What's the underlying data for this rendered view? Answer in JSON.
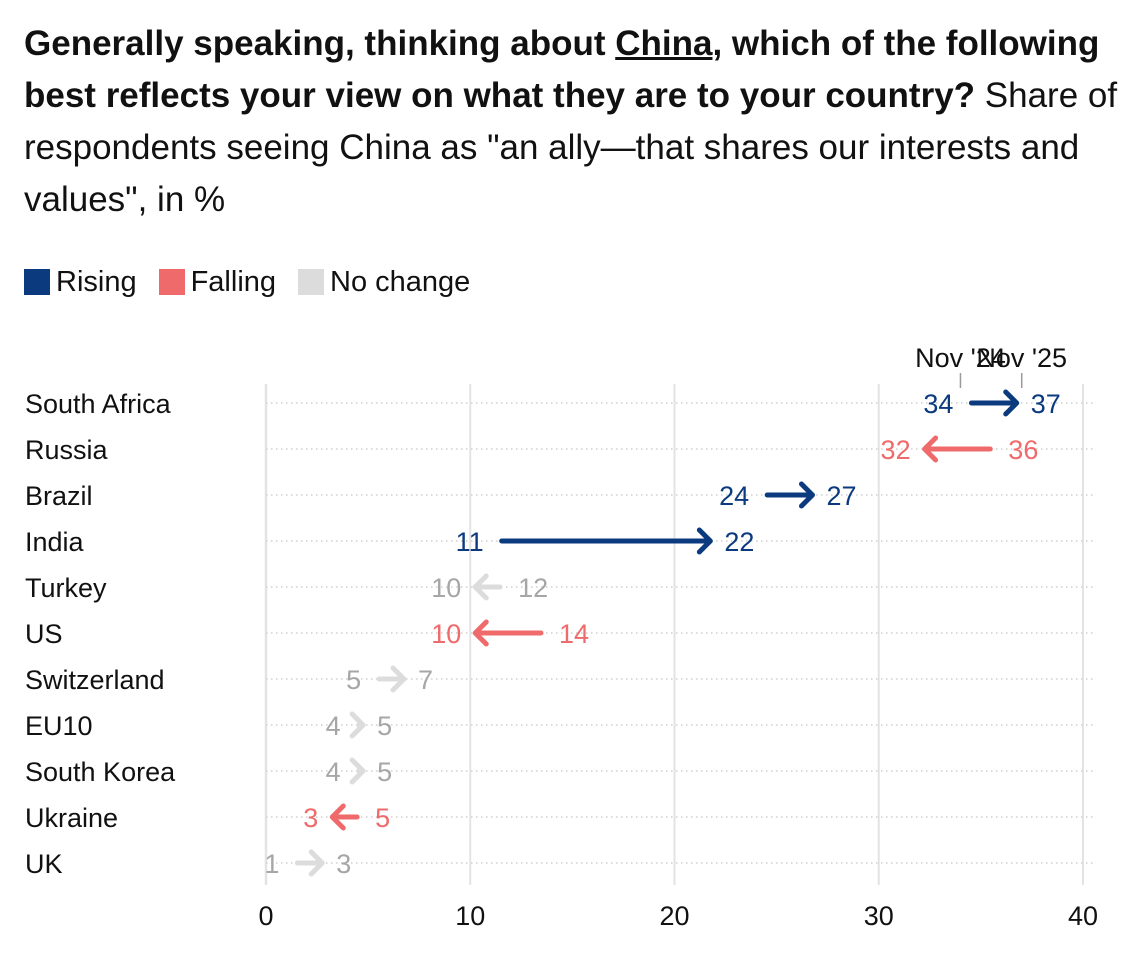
{
  "title": {
    "question_a": "Generally speaking, thinking about ",
    "question_underlined": "China",
    "question_b": ", which of the following best reflects your view on what they are to your country?",
    "subtitle": " Share of respondents seeing China as \"an ally—that shares our interests and values\", in %"
  },
  "legend": [
    {
      "label": "Rising",
      "color": "#0b3a7e"
    },
    {
      "label": "Falling",
      "color": "#ef6a6a"
    },
    {
      "label": "No change",
      "color": "#dcdcdc"
    }
  ],
  "colors": {
    "rising": "#0b3a7e",
    "falling": "#ef6a6a",
    "nochange_arrow": "#dcdcdc",
    "nochange_label": "#a6a6a6",
    "grid": "#e3e3e3",
    "dots": "#cfcfcf"
  },
  "chart_data": {
    "type": "arrow",
    "title": "Share of respondents seeing China as an ally, in %",
    "start_label": "Nov '24",
    "end_label": "Nov '25",
    "xlim": [
      0,
      40
    ],
    "xticks": [
      0,
      10,
      20,
      30,
      40
    ],
    "marker_values": {
      "start": 34,
      "end": 37
    },
    "rows": [
      {
        "country": "South Africa",
        "nov24": 34,
        "nov25": 37,
        "trend": "rising"
      },
      {
        "country": "Russia",
        "nov24": 36,
        "nov25": 32,
        "trend": "falling"
      },
      {
        "country": "Brazil",
        "nov24": 24,
        "nov25": 27,
        "trend": "rising"
      },
      {
        "country": "India",
        "nov24": 11,
        "nov25": 22,
        "trend": "rising"
      },
      {
        "country": "Turkey",
        "nov24": 12,
        "nov25": 10,
        "trend": "nochange"
      },
      {
        "country": "US",
        "nov24": 14,
        "nov25": 10,
        "trend": "falling"
      },
      {
        "country": "Switzerland",
        "nov24": 5,
        "nov25": 7,
        "trend": "nochange"
      },
      {
        "country": "EU10",
        "nov24": 4,
        "nov25": 5,
        "trend": "nochange"
      },
      {
        "country": "South Korea",
        "nov24": 4,
        "nov25": 5,
        "trend": "nochange"
      },
      {
        "country": "Ukraine",
        "nov24": 5,
        "nov25": 3,
        "trend": "falling"
      },
      {
        "country": "UK",
        "nov24": 1,
        "nov25": 3,
        "trend": "nochange"
      }
    ]
  }
}
